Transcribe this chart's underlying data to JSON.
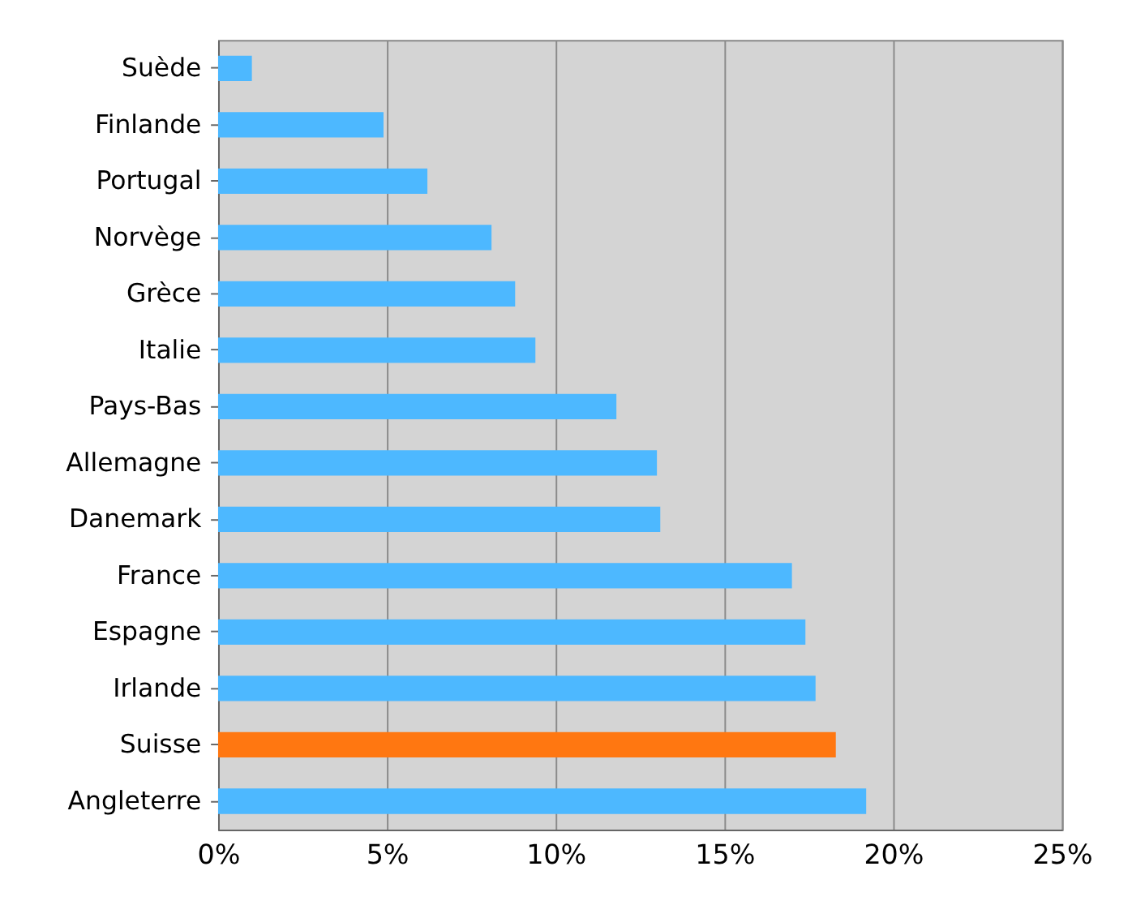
{
  "chart_data": {
    "type": "bar",
    "orientation": "horizontal",
    "categories": [
      "Suède",
      "Finlande",
      "Portugal",
      "Norvège",
      "Grèce",
      "Italie",
      "Pays-Bas",
      "Allemagne",
      "Danemark",
      "France",
      "Espagne",
      "Irlande",
      "Suisse",
      "Angleterre"
    ],
    "values": [
      1.0,
      4.9,
      6.2,
      8.1,
      8.8,
      9.4,
      11.8,
      13.0,
      13.1,
      17.0,
      17.4,
      17.7,
      18.3,
      19.2
    ],
    "colors": [
      "#4db8ff",
      "#4db8ff",
      "#4db8ff",
      "#4db8ff",
      "#4db8ff",
      "#4db8ff",
      "#4db8ff",
      "#4db8ff",
      "#4db8ff",
      "#4db8ff",
      "#4db8ff",
      "#4db8ff",
      "#ff7711",
      "#4db8ff"
    ],
    "xlim": [
      0,
      25
    ],
    "xticks": [
      {
        "value": 0,
        "label": "0%"
      },
      {
        "value": 5,
        "label": "5%"
      },
      {
        "value": 10,
        "label": "10%"
      },
      {
        "value": 15,
        "label": "15%"
      },
      {
        "value": 20,
        "label": "20%"
      },
      {
        "value": 25,
        "label": "25%"
      }
    ],
    "grid": "x"
  }
}
